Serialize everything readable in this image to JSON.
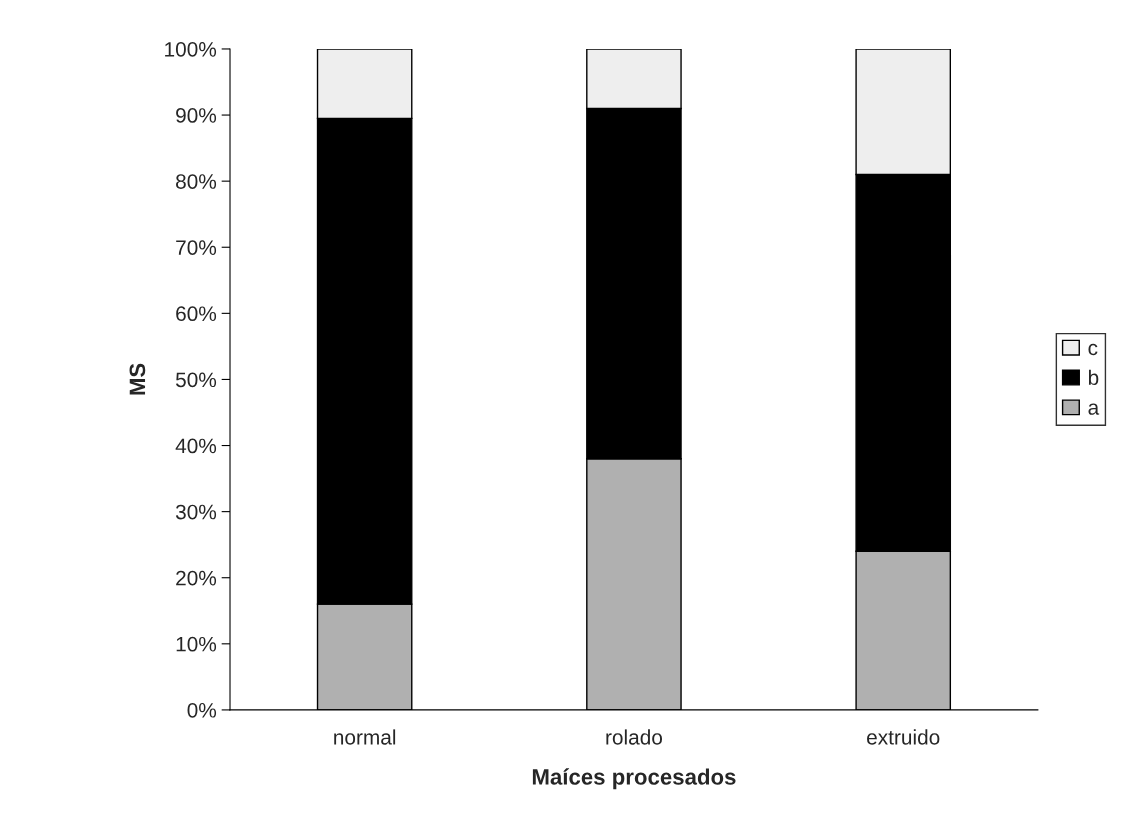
{
  "chart_data": {
    "type": "bar",
    "stacked": true,
    "xlabel": "Maíces procesados",
    "ylabel": "MS",
    "categories": [
      "normal",
      "rolado",
      "extruido"
    ],
    "series": [
      {
        "name": "a",
        "color": "#b0b0b0",
        "values": [
          16,
          38,
          24
        ]
      },
      {
        "name": "b",
        "color": "#000000",
        "values": [
          73.5,
          53,
          57
        ]
      },
      {
        "name": "c",
        "color": "#eeeeee",
        "values": [
          10.5,
          9,
          19
        ]
      }
    ],
    "ylim": [
      0,
      100
    ],
    "yticks": [
      {
        "value": 0,
        "label": "0%"
      },
      {
        "value": 10,
        "label": "10%"
      },
      {
        "value": 20,
        "label": "20%"
      },
      {
        "value": 30,
        "label": "30%"
      },
      {
        "value": 40,
        "label": "40%"
      },
      {
        "value": 50,
        "label": "50%"
      },
      {
        "value": 60,
        "label": "60%"
      },
      {
        "value": 70,
        "label": "70%"
      },
      {
        "value": 80,
        "label": "80%"
      },
      {
        "value": 90,
        "label": "90%"
      },
      {
        "value": 100,
        "label": "100%"
      }
    ],
    "grid": false,
    "legend": "right"
  }
}
